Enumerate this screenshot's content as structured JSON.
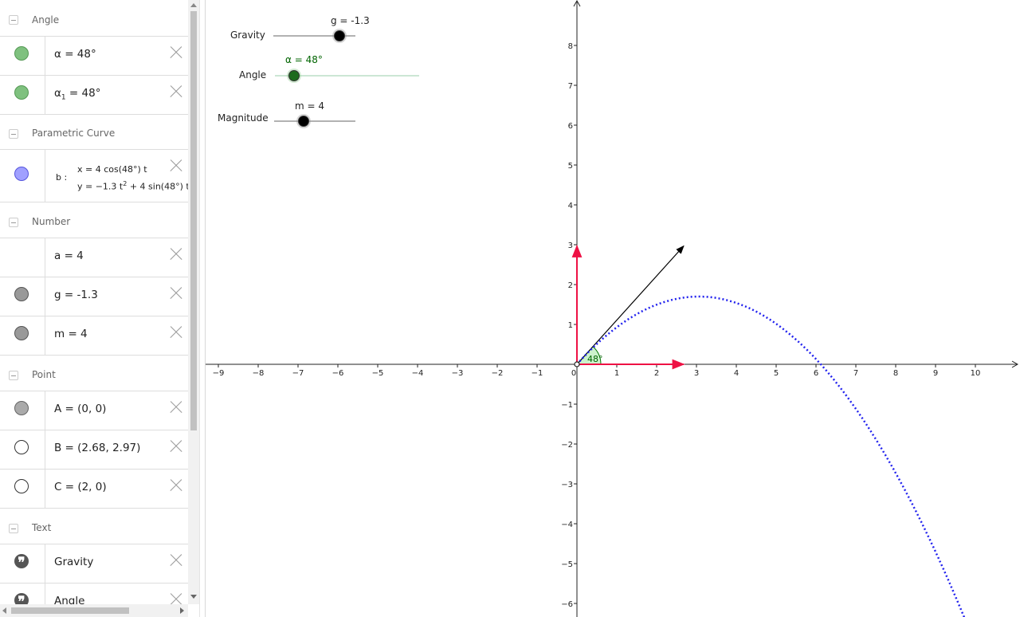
{
  "algebra": {
    "groups": [
      {
        "title": "Angle"
      },
      {
        "title": "Parametric Curve"
      },
      {
        "title": "Number"
      },
      {
        "title": "Point"
      },
      {
        "title": "Text"
      }
    ],
    "rows": {
      "alpha": {
        "text": "α = 48°",
        "color": "#7fc17f"
      },
      "alpha1": {
        "name": "α",
        "sub": "1",
        "value": " = 48°",
        "color": "#7fc17f"
      },
      "curve": {
        "label": "b :",
        "line1": "x = 4  cos(48°)  t",
        "line2_a": "y = −1.3 t",
        "line2_exp": "2",
        "line2_b": " + 4  sin(48°) t",
        "color": "#a0a0ff"
      },
      "a": {
        "text": "a = 4"
      },
      "g": {
        "text": "g = -1.3",
        "color": "#999999"
      },
      "m": {
        "text": "m = 4",
        "color": "#999999"
      },
      "A": {
        "text": "A = (0, 0)",
        "color": "#aaaaaa"
      },
      "B": {
        "text": "B = (2.68, 2.97)",
        "color": "#ffffff"
      },
      "C": {
        "text": "C = (2, 0)",
        "color": "#ffffff"
      },
      "gravity": {
        "text": "Gravity"
      },
      "angle": {
        "text": "Angle"
      }
    },
    "quote_glyph": "❞"
  },
  "sliders": {
    "gravity": {
      "label": "Gravity",
      "caption": "g = -1.3",
      "value": -1.3
    },
    "angle": {
      "label": "Angle",
      "caption": "α = 48°",
      "value": 48
    },
    "magnitude": {
      "label": "Magnitude",
      "caption": "m = 4",
      "value": 4
    }
  },
  "graph": {
    "xlim": [
      -9,
      10
    ],
    "ylim": [
      -6,
      8
    ],
    "x_ticks": [
      "−9",
      "−8",
      "−7",
      "−6",
      "−5",
      "−4",
      "−3",
      "−2",
      "−1",
      "0",
      "1",
      "2",
      "3",
      "4",
      "5",
      "6",
      "7",
      "8",
      "9",
      "10"
    ],
    "y_ticks": [
      "8",
      "7",
      "6",
      "5",
      "4",
      "3",
      "2",
      "1",
      "−1",
      "−2",
      "−3",
      "−4",
      "−5",
      "−6"
    ],
    "angle_label": "48°",
    "curve": {
      "v": 4,
      "angle_deg": 48,
      "g": -1.3,
      "color": "#2222ee"
    },
    "vector_color": "#ee1144",
    "angle_fill": "#ccf2cc",
    "angle_text_color": "#006400",
    "point_B": [
      2.68,
      2.97
    ],
    "point_C": [
      2,
      0
    ]
  }
}
